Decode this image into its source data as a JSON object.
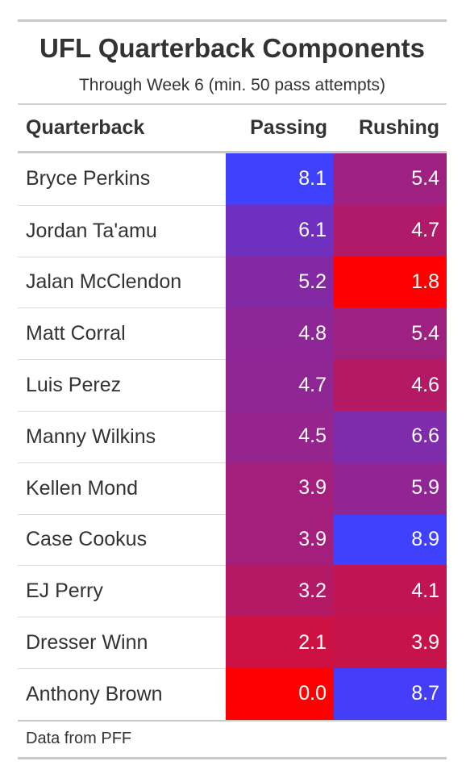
{
  "chart_data": {
    "type": "table",
    "title": "UFL Quarterback Components",
    "subtitle": "Through Week 6 (min. 50 pass attempts)",
    "columns": [
      "Quarterback",
      "Passing",
      "Rushing"
    ],
    "rows": [
      {
        "name": "Bryce Perkins",
        "passing": "8.1",
        "rushing": "5.4"
      },
      {
        "name": "Jordan Ta'amu",
        "passing": "6.1",
        "rushing": "4.7"
      },
      {
        "name": "Jalan McClendon",
        "passing": "5.2",
        "rushing": "1.8"
      },
      {
        "name": "Matt Corral",
        "passing": "4.8",
        "rushing": "5.4"
      },
      {
        "name": "Luis Perez",
        "passing": "4.7",
        "rushing": "4.6"
      },
      {
        "name": "Manny Wilkins",
        "passing": "4.5",
        "rushing": "6.6"
      },
      {
        "name": "Kellen Mond",
        "passing": "3.9",
        "rushing": "5.9"
      },
      {
        "name": "Case Cookus",
        "passing": "3.9",
        "rushing": "8.9"
      },
      {
        "name": "EJ Perry",
        "passing": "3.2",
        "rushing": "4.1"
      },
      {
        "name": "Dresser Winn",
        "passing": "2.1",
        "rushing": "3.9"
      },
      {
        "name": "Anthony Brown",
        "passing": "0.0",
        "rushing": "8.7"
      }
    ],
    "color_scale": {
      "low_color": "#ff0000",
      "high_color": "#4040ff",
      "passing_range": [
        0.0,
        8.1
      ],
      "rushing_range": [
        1.8,
        8.9
      ]
    },
    "footer": "Data from PFF"
  }
}
